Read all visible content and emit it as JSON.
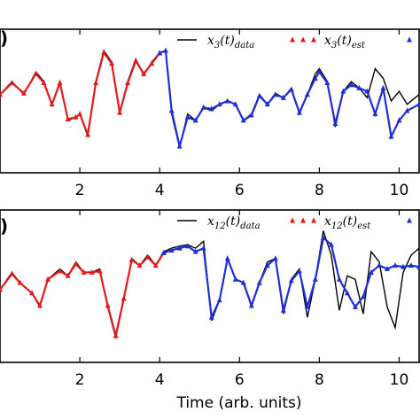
{
  "chart_data": [
    {
      "type": "line",
      "panel_label": ")",
      "xlim": [
        0,
        10.5
      ],
      "ylim": [
        -1,
        1
      ],
      "x_ticks": [
        "2",
        "4",
        "6",
        "8",
        "10"
      ],
      "legend_placement": "top-right",
      "legend": [
        {
          "var": "x",
          "sub": "3",
          "arg": "(t)",
          "qual": "data"
        },
        {
          "var": "x",
          "sub": "3",
          "arg": "(t)",
          "qual": "est"
        }
      ],
      "colors": {
        "data": "#000000",
        "train": "#e31a1c",
        "test": "#1f2fd6"
      },
      "series": [
        {
          "name": "data",
          "x": [
            0,
            0.3,
            0.6,
            0.9,
            1.1,
            1.3,
            1.5,
            1.7,
            1.9,
            2.0,
            2.2,
            2.4,
            2.6,
            2.8,
            3.0,
            3.2,
            3.4,
            3.6,
            3.8,
            4.0,
            4.15,
            4.3,
            4.5,
            4.7,
            4.9,
            5.1,
            5.3,
            5.5,
            5.7,
            5.9,
            6.1,
            6.3,
            6.5,
            6.7,
            6.9,
            7.1,
            7.3,
            7.5,
            7.7,
            7.9,
            8.0,
            8.2,
            8.4,
            8.6,
            8.8,
            9.0,
            9.2,
            9.4,
            9.6,
            9.8,
            10.0,
            10.2,
            10.5
          ],
          "y": [
            0.1,
            0.3,
            0.1,
            0.45,
            0.3,
            -0.05,
            0.3,
            -0.3,
            -0.25,
            -0.2,
            -0.55,
            0.3,
            0.78,
            0.6,
            -0.2,
            0.3,
            0.65,
            0.4,
            0.6,
            0.75,
            0.78,
            -0.2,
            -0.72,
            -0.2,
            -0.3,
            -0.1,
            -0.15,
            -0.05,
            0.0,
            -0.05,
            -0.3,
            -0.2,
            0.1,
            -0.05,
            0.12,
            0.05,
            0.2,
            -0.2,
            0.1,
            0.42,
            0.5,
            0.3,
            -0.4,
            0.15,
            0.3,
            0.2,
            0.05,
            0.5,
            0.35,
            0.0,
            0.15,
            -0.05,
            0.1
          ]
        },
        {
          "name": "est-train",
          "x": [
            0,
            0.3,
            0.6,
            0.9,
            1.1,
            1.3,
            1.5,
            1.7,
            1.9,
            2.0,
            2.2,
            2.4,
            2.6,
            2.8,
            3.0,
            3.2,
            3.4,
            3.6,
            3.8,
            4.0
          ],
          "y": [
            0.1,
            0.28,
            0.12,
            0.42,
            0.28,
            -0.05,
            0.28,
            -0.28,
            -0.25,
            -0.2,
            -0.52,
            0.28,
            0.75,
            0.58,
            -0.18,
            0.28,
            0.62,
            0.42,
            0.58,
            0.74
          ]
        },
        {
          "name": "est-test",
          "x": [
            4.0,
            4.15,
            4.3,
            4.5,
            4.7,
            4.9,
            5.1,
            5.3,
            5.5,
            5.7,
            5.9,
            6.1,
            6.3,
            6.5,
            6.7,
            6.9,
            7.1,
            7.3,
            7.5,
            7.7,
            7.9,
            8.0,
            8.2,
            8.4,
            8.6,
            8.8,
            9.0,
            9.2,
            9.4,
            9.6,
            9.8,
            10.0,
            10.2,
            10.5
          ],
          "y": [
            0.74,
            0.78,
            -0.15,
            -0.7,
            -0.25,
            -0.3,
            -0.1,
            -0.12,
            -0.05,
            0.0,
            -0.05,
            -0.3,
            -0.22,
            0.08,
            -0.05,
            0.1,
            0.05,
            0.18,
            -0.18,
            0.1,
            0.35,
            0.45,
            0.28,
            -0.35,
            0.15,
            0.25,
            0.2,
            0.15,
            -0.2,
            0.2,
            -0.55,
            -0.3,
            -0.15,
            -0.05
          ]
        }
      ]
    },
    {
      "type": "line",
      "panel_label": ")",
      "xlim": [
        0,
        10.5
      ],
      "ylim": [
        -1,
        1
      ],
      "x_ticks": [
        "2",
        "4",
        "6",
        "8",
        "10"
      ],
      "xlabel": "Time (arb. units)",
      "legend_placement": "top-right",
      "legend": [
        {
          "var": "x",
          "sub": "12",
          "arg": "(t)",
          "qual": "data"
        },
        {
          "var": "x",
          "sub": "12",
          "arg": "(t)",
          "qual": "est"
        }
      ],
      "colors": {
        "data": "#000000",
        "train": "#e31a1c",
        "test": "#1f2fd6"
      },
      "series": [
        {
          "name": "data",
          "x": [
            0,
            0.3,
            0.5,
            0.8,
            1.0,
            1.2,
            1.5,
            1.7,
            1.9,
            2.1,
            2.3,
            2.5,
            2.7,
            2.9,
            3.1,
            3.3,
            3.5,
            3.7,
            3.9,
            4.1,
            4.3,
            4.5,
            4.7,
            4.9,
            5.1,
            5.3,
            5.5,
            5.7,
            5.9,
            6.1,
            6.3,
            6.5,
            6.7,
            6.9,
            7.1,
            7.3,
            7.5,
            7.7,
            7.9,
            8.1,
            8.3,
            8.5,
            8.7,
            8.9,
            9.1,
            9.3,
            9.5,
            9.7,
            9.9,
            10.1,
            10.3,
            10.5
          ],
          "y": [
            -0.05,
            0.2,
            0.05,
            -0.1,
            -0.3,
            0.1,
            0.25,
            0.15,
            0.35,
            0.2,
            0.2,
            0.25,
            -0.3,
            -0.75,
            -0.2,
            0.4,
            0.3,
            0.45,
            0.3,
            0.5,
            0.55,
            0.58,
            0.6,
            0.55,
            0.65,
            -0.5,
            -0.2,
            0.4,
            0.1,
            0.05,
            -0.3,
            0.05,
            0.35,
            0.4,
            -0.4,
            0.1,
            0.25,
            -0.45,
            0.1,
            0.8,
            0.45,
            -0.35,
            0.15,
            0.1,
            -0.4,
            0.5,
            0.35,
            -0.3,
            -0.6,
            0.2,
            0.45,
            0.55
          ]
        },
        {
          "name": "est-train",
          "x": [
            0,
            0.3,
            0.5,
            0.8,
            1.0,
            1.2,
            1.5,
            1.7,
            1.9,
            2.1,
            2.3,
            2.5,
            2.7,
            2.9,
            3.1,
            3.3,
            3.5,
            3.7,
            3.9,
            4.1
          ],
          "y": [
            -0.05,
            0.18,
            0.05,
            -0.1,
            -0.28,
            0.1,
            0.22,
            0.15,
            0.32,
            0.2,
            0.2,
            0.22,
            -0.28,
            -0.72,
            -0.18,
            0.38,
            0.3,
            0.42,
            0.3,
            0.48
          ]
        },
        {
          "name": "est-test",
          "x": [
            4.1,
            4.3,
            4.5,
            4.7,
            4.9,
            5.1,
            5.3,
            5.5,
            5.7,
            5.9,
            6.1,
            6.3,
            6.5,
            6.7,
            6.9,
            7.1,
            7.3,
            7.5,
            7.7,
            7.9,
            8.1,
            8.3,
            8.5,
            8.7,
            8.9,
            9.1,
            9.3,
            9.5,
            9.7,
            9.9,
            10.1,
            10.3,
            10.5
          ],
          "y": [
            0.48,
            0.52,
            0.55,
            0.58,
            0.5,
            0.55,
            -0.45,
            -0.2,
            0.4,
            0.1,
            0.05,
            -0.28,
            0.05,
            0.3,
            0.4,
            -0.35,
            0.08,
            0.22,
            -0.3,
            0.1,
            0.7,
            0.6,
            0.1,
            -0.1,
            -0.3,
            -0.15,
            0.2,
            0.3,
            0.25,
            0.3,
            0.28,
            0.3,
            0.28
          ]
        }
      ]
    }
  ]
}
